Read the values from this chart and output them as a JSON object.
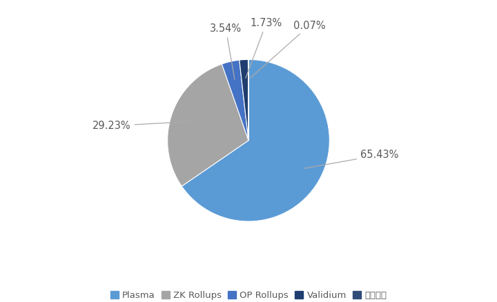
{
  "labels": [
    "Plasma",
    "ZK Rollups",
    "OP Rollups",
    "Validium",
    "状态通道"
  ],
  "values": [
    65.43,
    29.23,
    3.54,
    1.73,
    0.07
  ],
  "colors": [
    "#5B9BD5",
    "#A5A5A5",
    "#4472C4",
    "#1F3D6E",
    "#2E4B7A"
  ],
  "pct_labels": [
    "65.43%",
    "29.23%",
    "3.54%",
    "1.73%",
    "0.07%"
  ],
  "background_color": "#FFFFFF",
  "legend_fontsize": 9.5,
  "label_fontsize": 10.5,
  "font_color": "#595959"
}
